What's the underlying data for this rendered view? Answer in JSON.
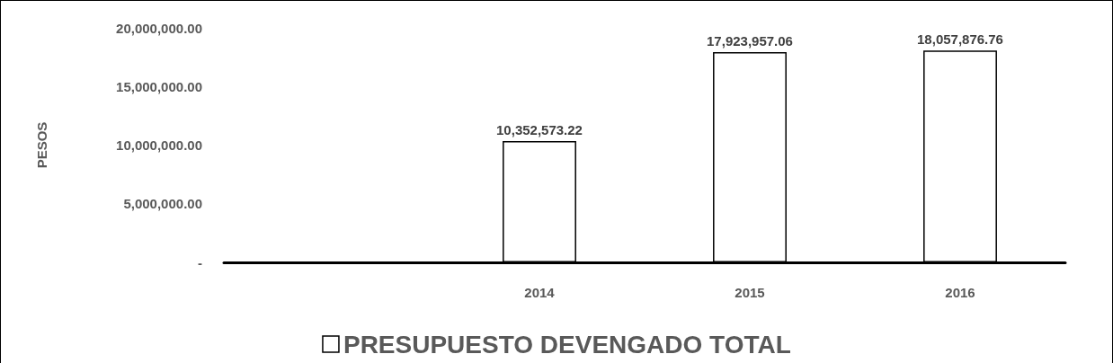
{
  "chart_data": {
    "type": "bar",
    "ylabel": "PESOS",
    "categories": [
      null,
      "2014",
      "2015",
      "2016"
    ],
    "series": [
      {
        "name": "PRESUPUESTO DEVENGADO TOTAL",
        "color": "#ffffff",
        "values": [
          null,
          10352573.22,
          17923957.06,
          18057876.76
        ],
        "value_labels": [
          null,
          "10,352,573.22",
          "17,923,957.06",
          "18,057,876.76"
        ]
      }
    ],
    "ylim": [
      0,
      20000000
    ],
    "yticks": [
      {
        "value": 0,
        "label": "-"
      },
      {
        "value": 5000000,
        "label": "5,000,000.00"
      },
      {
        "value": 10000000,
        "label": "10,000,000.00"
      },
      {
        "value": 15000000,
        "label": "15,000,000.00"
      },
      {
        "value": 20000000,
        "label": "20,000,000.00"
      }
    ],
    "grid": false,
    "legend": "bottom"
  }
}
